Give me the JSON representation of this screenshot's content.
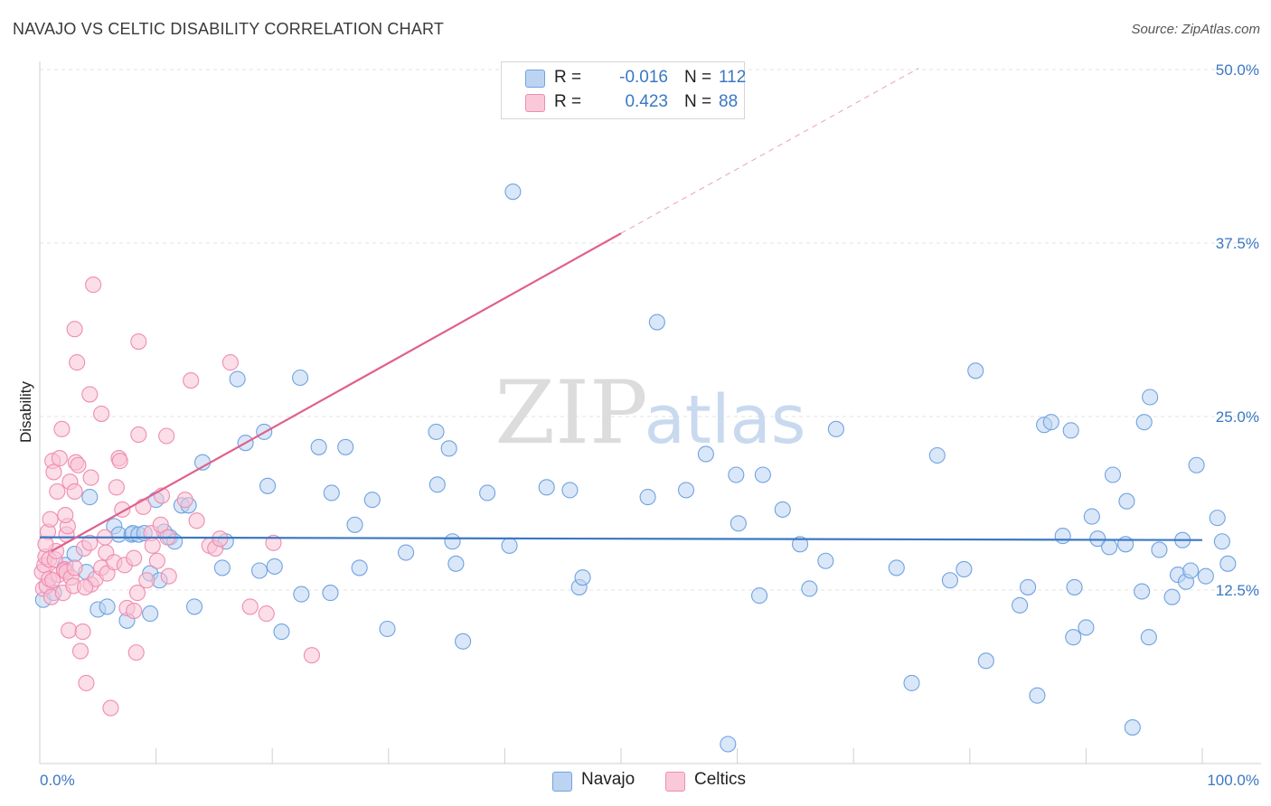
{
  "header": {
    "title": "NAVAJO VS CELTIC DISABILITY CORRELATION CHART",
    "source": "Source: ZipAtlas.com"
  },
  "watermark": {
    "zip": "ZIP",
    "atlas": "atlas"
  },
  "legend": {
    "rows": [
      {
        "series": "Navajo",
        "r_label": "R =",
        "r_value": "-0.016",
        "n_label": "N =",
        "n_value": "112",
        "color": "#6fa3e0",
        "fill": "#bdd5f4"
      },
      {
        "series": "Celtics",
        "r_label": "R =",
        "r_value": "0.423",
        "n_label": "N =",
        "n_value": "88",
        "color": "#f08cb0",
        "fill": "#f9c9da"
      }
    ]
  },
  "chart_data": {
    "type": "scatter",
    "title": "NAVAJO VS CELTIC DISABILITY CORRELATION CHART",
    "xlabel": "",
    "ylabel": "Disability",
    "xlim": [
      0,
      100
    ],
    "ylim": [
      0,
      50
    ],
    "x_tick_labels": [
      "0.0%",
      "100.0%"
    ],
    "y_ticks": [
      12.5,
      25.0,
      37.5,
      50.0
    ],
    "y_tick_labels": [
      "12.5%",
      "25.0%",
      "37.5%",
      "50.0%"
    ],
    "grid": true,
    "legend_position": "top-center",
    "series": [
      {
        "name": "Navajo",
        "color": "#3a78c2",
        "marker_fill": "#bcd4f2",
        "trend": {
          "x": [
            0,
            100
          ],
          "y": [
            16.3,
            16.1
          ],
          "style": "solid"
        },
        "points": [
          [
            0.3,
            11.8
          ],
          [
            1.2,
            12.3
          ],
          [
            2.2,
            14.3
          ],
          [
            3,
            15.1
          ],
          [
            4,
            13.8
          ],
          [
            4.3,
            19.2
          ],
          [
            5,
            11.1
          ],
          [
            5.8,
            11.3
          ],
          [
            6.4,
            17.1
          ],
          [
            6.8,
            16.5
          ],
          [
            7.5,
            10.3
          ],
          [
            7.9,
            16.5
          ],
          [
            8,
            16.6
          ],
          [
            8.5,
            16.5
          ],
          [
            9,
            16.6
          ],
          [
            9.5,
            10.8
          ],
          [
            9.5,
            13.7
          ],
          [
            10,
            19
          ],
          [
            10.3,
            13.2
          ],
          [
            10.7,
            16.7
          ],
          [
            11.2,
            16.3
          ],
          [
            11.6,
            16
          ],
          [
            12.2,
            18.6
          ],
          [
            12.8,
            18.6
          ],
          [
            13.3,
            11.3
          ],
          [
            14,
            21.7
          ],
          [
            15.7,
            14.1
          ],
          [
            16,
            16
          ],
          [
            17,
            27.7
          ],
          [
            17.7,
            23.1
          ],
          [
            18.9,
            13.9
          ],
          [
            19.3,
            23.9
          ],
          [
            19.6,
            20
          ],
          [
            20.2,
            14.2
          ],
          [
            20.8,
            9.5
          ],
          [
            22.4,
            27.8
          ],
          [
            22.5,
            12.2
          ],
          [
            24,
            22.8
          ],
          [
            25,
            12.3
          ],
          [
            25.1,
            19.5
          ],
          [
            26.3,
            22.8
          ],
          [
            27.1,
            17.2
          ],
          [
            27.5,
            14.1
          ],
          [
            28.6,
            19
          ],
          [
            29.9,
            9.7
          ],
          [
            31.5,
            15.2
          ],
          [
            34.1,
            23.9
          ],
          [
            34.2,
            20.1
          ],
          [
            35.2,
            22.7
          ],
          [
            35.5,
            16
          ],
          [
            35.8,
            14.4
          ],
          [
            36.4,
            8.8
          ],
          [
            38.5,
            19.5
          ],
          [
            40.4,
            15.7
          ],
          [
            40.7,
            41.2
          ],
          [
            43.6,
            19.9
          ],
          [
            45.6,
            19.7
          ],
          [
            46.4,
            12.7
          ],
          [
            46.7,
            13.4
          ],
          [
            52.3,
            19.2
          ],
          [
            53.1,
            31.8
          ],
          [
            55.6,
            19.7
          ],
          [
            57.3,
            22.3
          ],
          [
            59.2,
            1.4
          ],
          [
            59.9,
            20.8
          ],
          [
            60.1,
            17.3
          ],
          [
            61.9,
            12.1
          ],
          [
            62.2,
            20.8
          ],
          [
            63.9,
            18.3
          ],
          [
            65.4,
            15.8
          ],
          [
            66.2,
            12.6
          ],
          [
            67.6,
            14.6
          ],
          [
            68.5,
            24.1
          ],
          [
            73.7,
            14.1
          ],
          [
            75,
            5.8
          ],
          [
            77.2,
            22.2
          ],
          [
            78.3,
            13.2
          ],
          [
            79.5,
            14
          ],
          [
            80.5,
            28.3
          ],
          [
            81.4,
            7.4
          ],
          [
            84.3,
            11.4
          ],
          [
            85,
            12.7
          ],
          [
            85.8,
            4.9
          ],
          [
            86.4,
            24.4
          ],
          [
            87,
            24.6
          ],
          [
            88,
            16.4
          ],
          [
            88.7,
            24
          ],
          [
            88.9,
            9.1
          ],
          [
            89,
            12.7
          ],
          [
            90,
            9.8
          ],
          [
            90.5,
            17.8
          ],
          [
            91,
            16.2
          ],
          [
            92,
            15.6
          ],
          [
            92.3,
            20.8
          ],
          [
            93.4,
            15.8
          ],
          [
            93.5,
            18.9
          ],
          [
            94,
            2.6
          ],
          [
            94.8,
            12.4
          ],
          [
            95,
            24.6
          ],
          [
            95.4,
            9.1
          ],
          [
            95.5,
            26.4
          ],
          [
            96.3,
            15.4
          ],
          [
            97.4,
            12
          ],
          [
            97.9,
            13.6
          ],
          [
            98.3,
            16.1
          ],
          [
            98.6,
            13.1
          ],
          [
            99,
            13.9
          ],
          [
            99.5,
            21.5
          ],
          [
            100.3,
            13.5
          ],
          [
            101.3,
            17.7
          ],
          [
            101.7,
            16
          ],
          [
            102.2,
            14.4
          ]
        ]
      },
      {
        "name": "Celtics",
        "color": "#e0608c",
        "marker_fill": "#f7c3d5",
        "trend": {
          "x": [
            1,
            50
          ],
          "y": [
            15.3,
            38.2
          ],
          "style": "solid",
          "extension": {
            "x": [
              50,
              75.6
            ],
            "y": [
              38.2,
              50.1
            ],
            "style": "dashed"
          }
        },
        "points": [
          [
            0.2,
            13.8
          ],
          [
            0.3,
            12.6
          ],
          [
            0.4,
            14.3
          ],
          [
            0.5,
            14.9
          ],
          [
            0.6,
            12.8
          ],
          [
            0.7,
            16.7
          ],
          [
            0.8,
            14.7
          ],
          [
            0.8,
            13.3
          ],
          [
            0.9,
            17.6
          ],
          [
            1,
            12
          ],
          [
            1.1,
            21.8
          ],
          [
            1.2,
            21
          ],
          [
            1.3,
            14.7
          ],
          [
            1.4,
            15.3
          ],
          [
            1.5,
            19.6
          ],
          [
            1.6,
            13.6
          ],
          [
            1.7,
            22
          ],
          [
            1.9,
            24.1
          ],
          [
            2,
            12.3
          ],
          [
            2.1,
            14
          ],
          [
            2.1,
            13.9
          ],
          [
            2.3,
            16.5
          ],
          [
            2.3,
            13.8
          ],
          [
            2.4,
            17.1
          ],
          [
            2.5,
            9.6
          ],
          [
            2.6,
            20.3
          ],
          [
            2.7,
            13.4
          ],
          [
            2.9,
            12.8
          ],
          [
            3,
            19.6
          ],
          [
            3,
            31.3
          ],
          [
            3,
            14.1
          ],
          [
            3.1,
            21.7
          ],
          [
            3.2,
            28.9
          ],
          [
            3.3,
            21.5
          ],
          [
            3.5,
            8.1
          ],
          [
            3.7,
            9.5
          ],
          [
            3.8,
            15.5
          ],
          [
            4,
            5.8
          ],
          [
            4.3,
            26.6
          ],
          [
            4.3,
            15.9
          ],
          [
            4.4,
            12.9
          ],
          [
            4.4,
            20.6
          ],
          [
            4.6,
            34.5
          ],
          [
            4.8,
            13.3
          ],
          [
            5.3,
            25.2
          ],
          [
            5.3,
            14.1
          ],
          [
            5.6,
            16.3
          ],
          [
            5.7,
            15.2
          ],
          [
            5.8,
            13.7
          ],
          [
            6.1,
            4
          ],
          [
            6.4,
            14.5
          ],
          [
            6.6,
            19.9
          ],
          [
            6.8,
            22
          ],
          [
            6.9,
            21.8
          ],
          [
            7.1,
            18.3
          ],
          [
            7.3,
            14.3
          ],
          [
            7.5,
            11.2
          ],
          [
            8.1,
            14.8
          ],
          [
            8.1,
            11
          ],
          [
            8.3,
            8
          ],
          [
            8.4,
            12.3
          ],
          [
            8.5,
            30.4
          ],
          [
            8.5,
            23.7
          ],
          [
            8.9,
            18.5
          ],
          [
            9.2,
            13.2
          ],
          [
            9.6,
            16.6
          ],
          [
            9.7,
            15.7
          ],
          [
            10.1,
            14.6
          ],
          [
            10.4,
            17.2
          ],
          [
            10.5,
            19.3
          ],
          [
            10.9,
            23.6
          ],
          [
            11,
            16.3
          ],
          [
            11.1,
            13.5
          ],
          [
            12.5,
            19
          ],
          [
            13,
            27.6
          ],
          [
            13.5,
            17.5
          ],
          [
            14.6,
            15.7
          ],
          [
            15.1,
            15.5
          ],
          [
            15.5,
            16.2
          ],
          [
            16.4,
            28.9
          ],
          [
            18.1,
            11.3
          ],
          [
            19.5,
            10.8
          ],
          [
            20.1,
            15.9
          ],
          [
            23.4,
            7.8
          ],
          [
            1.1,
            13.2
          ],
          [
            2.2,
            17.9
          ],
          [
            3.9,
            12.7
          ],
          [
            0.5,
            15.8
          ]
        ]
      }
    ]
  }
}
